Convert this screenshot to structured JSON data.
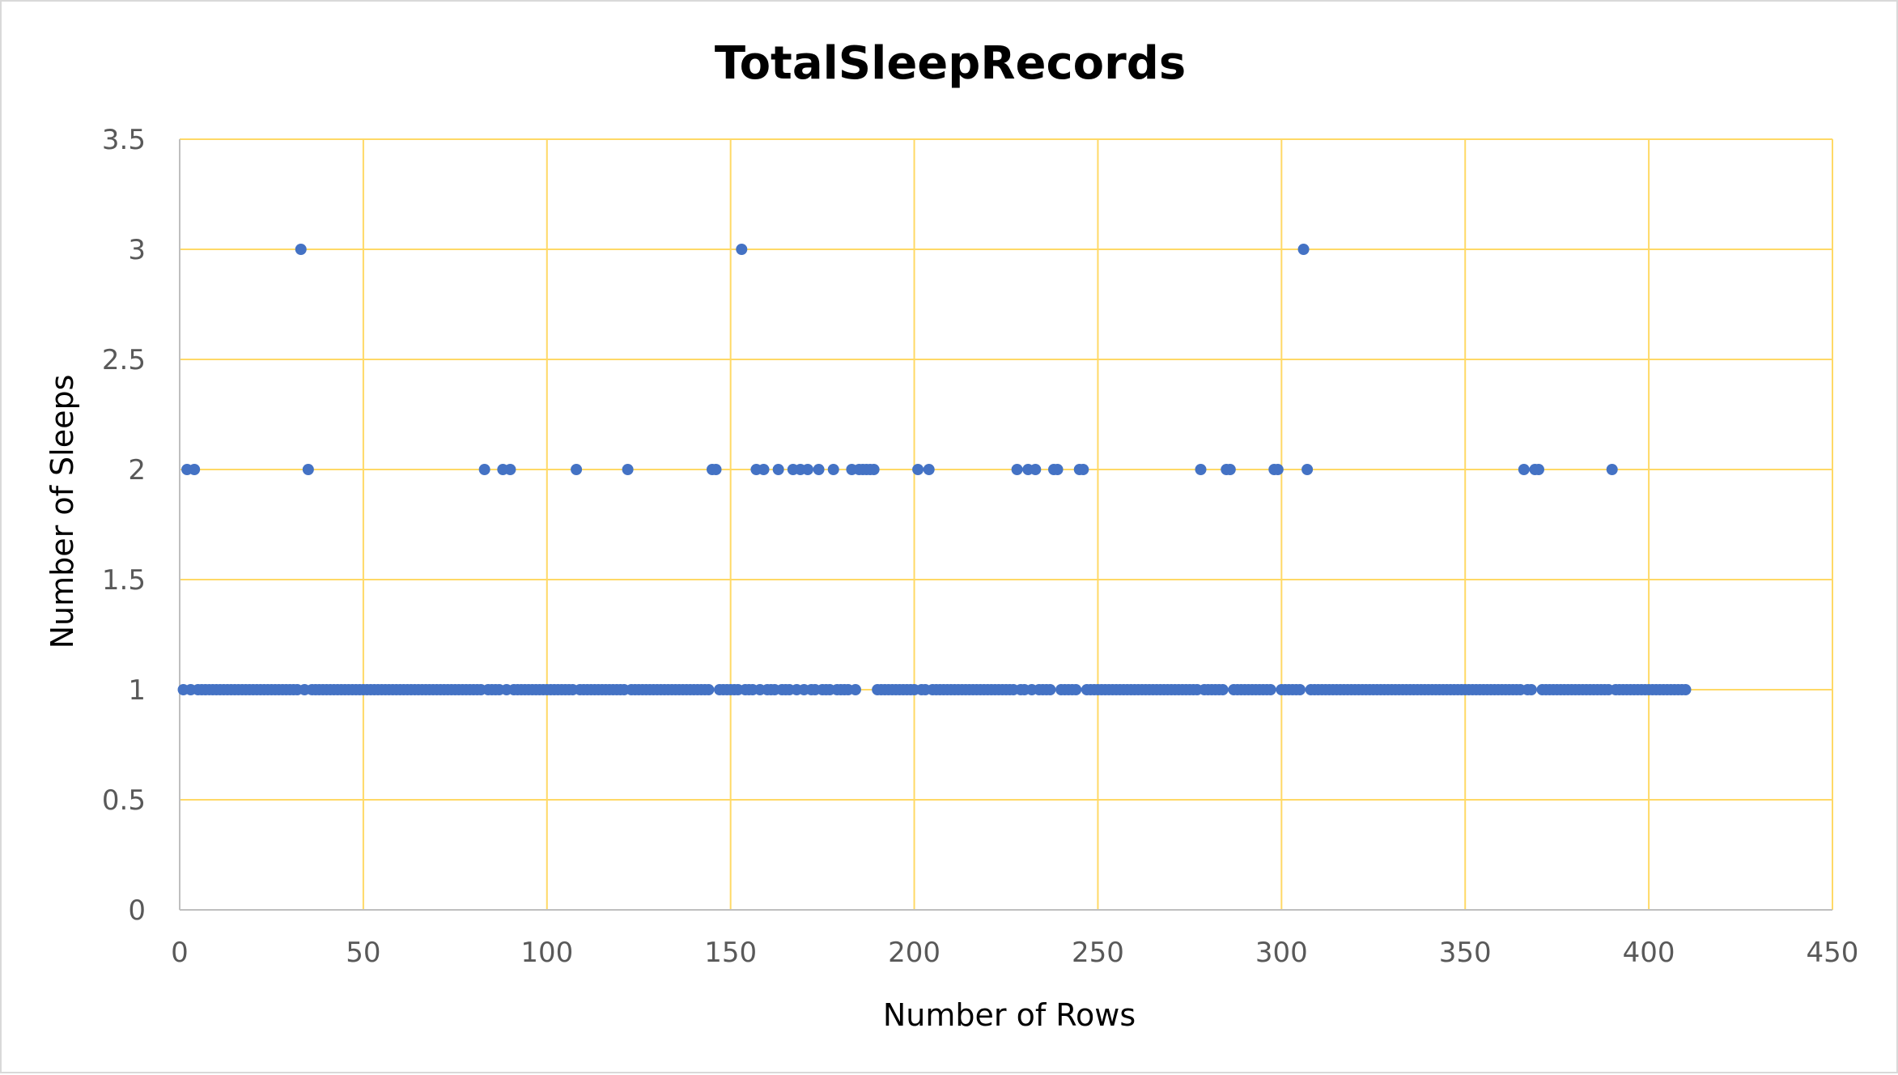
{
  "chart_data": {
    "type": "scatter",
    "title": "TotalSleepRecords",
    "xlabel": "Number of Rows",
    "ylabel": "Number of Sleeps",
    "xlim": [
      0,
      450
    ],
    "ylim": [
      0,
      3.5
    ],
    "x_ticks": [
      "0",
      "50",
      "100",
      "150",
      "200",
      "250",
      "300",
      "350",
      "400",
      "450"
    ],
    "y_ticks": [
      "0",
      "0.5",
      "1",
      "1.5",
      "2",
      "2.5",
      "3",
      "3.5"
    ],
    "grid": true,
    "legend": "none",
    "point_color": "#4472c4",
    "grid_color": "#ffd966",
    "series": [
      {
        "x_range_value_1": [
          1,
          410
        ],
        "x_value_3": [
          33,
          153,
          306
        ],
        "x_value_2": [
          2,
          4,
          35,
          83,
          88,
          90,
          108,
          122,
          145,
          146,
          157,
          159,
          163,
          167,
          169,
          171,
          174,
          178,
          183,
          185,
          186,
          187,
          188,
          189,
          201,
          204,
          228,
          231,
          233,
          238,
          239,
          245,
          246,
          278,
          285,
          286,
          298,
          299,
          307,
          366,
          369,
          370,
          390
        ]
      }
    ]
  }
}
